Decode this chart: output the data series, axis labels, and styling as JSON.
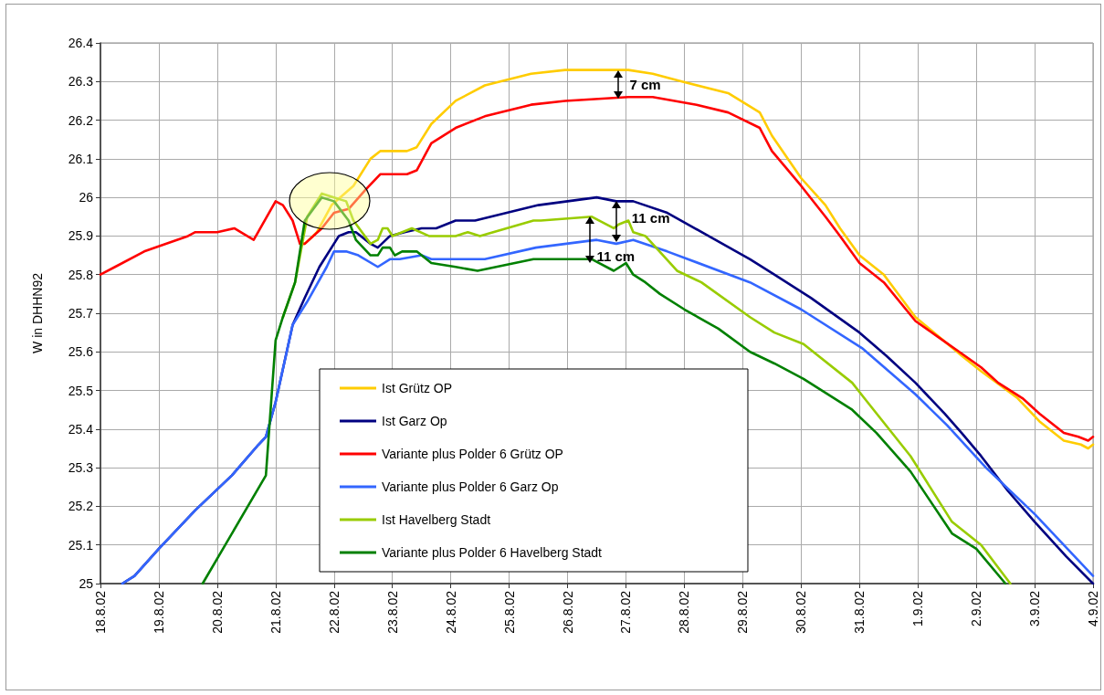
{
  "chart_data": {
    "type": "line",
    "ylabel": "W in DHHN92",
    "xlim": [
      "--08-18",
      "--09-04"
    ],
    "xticks": [
      {
        "value": "--08-18",
        "label": "18.8.02"
      },
      {
        "value": "--08-19",
        "label": "19.8.02"
      },
      {
        "value": "--08-20",
        "label": "20.8.02"
      },
      {
        "value": "--08-21",
        "label": "21.8.02"
      },
      {
        "value": "--08-22",
        "label": "22.8.02"
      },
      {
        "value": "--08-23",
        "label": "23.8.02"
      },
      {
        "value": "--08-24",
        "label": "24.8.02"
      },
      {
        "value": "--08-25",
        "label": "25.8.02"
      },
      {
        "value": "--08-26",
        "label": "26.8.02"
      },
      {
        "value": "--08-27",
        "label": "27.8.02"
      },
      {
        "value": "--08-28",
        "label": "28.8.02"
      },
      {
        "value": "--08-29",
        "label": "29.8.02"
      },
      {
        "value": "--08-30",
        "label": "30.8.02"
      },
      {
        "value": "--08-31",
        "label": "31.8.02"
      },
      {
        "value": "--09-01",
        "label": "1.9.02"
      },
      {
        "value": "--09-02",
        "label": "2.9.02"
      },
      {
        "value": "--09-03",
        "label": "3.9.02"
      },
      {
        "value": "--09-04",
        "label": "4.9.02"
      }
    ],
    "ylim": [
      25,
      26.4
    ],
    "yticks": [
      25,
      25.1,
      25.2,
      25.3,
      25.4,
      25.5,
      25.6,
      25.7,
      25.8,
      25.9,
      26,
      26.1,
      26.2,
      26.3,
      26.4
    ],
    "grid": true,
    "legend": "bottom",
    "marker": "none",
    "line_style": "solid",
    "series": [
      {
        "name": "Ist Grütz OP",
        "color": "#ffcc00",
        "x": [
          "--08-21T10:00",
          "--08-21T12:00",
          "--08-21T17:00",
          "--08-21T23:00",
          "--08-22T08:00",
          "--08-22T15:00",
          "--08-22T19:00",
          "--08-23T01:00",
          "--08-23T06:00",
          "--08-23T10:00",
          "--08-23T16:00",
          "--08-24T02:00",
          "--08-24T14:00",
          "--08-25T09:00",
          "--08-25T23:00",
          "--08-26T15:00",
          "--08-27T01:00",
          "--08-27T11:00",
          "--08-27T23:00",
          "--08-28T18:00",
          "--08-29T07:00",
          "--08-29T12:00",
          "--08-30T00:00",
          "--08-30T10:00",
          "--08-30T16:00",
          "--08-31T00:00",
          "--08-31T10:00",
          "--08-31T23:00",
          "--09-01T18:00",
          "--09-02T02:00",
          "--09-02T17:00",
          "--09-03T02:00",
          "--09-03T12:00",
          "--09-03T19:00",
          "--09-03T22:00",
          "--09-04T00:00"
        ],
        "values": [
          25.88,
          25.88,
          25.91,
          25.98,
          26.03,
          26.1,
          26.12,
          26.12,
          26.12,
          26.13,
          26.19,
          26.25,
          26.29,
          26.32,
          26.33,
          26.33,
          26.33,
          26.32,
          26.3,
          26.27,
          26.22,
          26.16,
          26.05,
          25.98,
          25.92,
          25.85,
          25.8,
          25.69,
          25.59,
          25.55,
          25.48,
          25.42,
          25.37,
          25.36,
          25.35,
          25.36
        ]
      },
      {
        "name": "Ist Garz Op",
        "color": "#000080",
        "x": [
          "--08-18T09:00",
          "--08-18T14:00",
          "--08-19T00:00",
          "--08-19T15:00",
          "--08-20T06:00",
          "--08-20T17:00",
          "--08-20T20:00",
          "--08-21T00:00",
          "--08-21T07:00",
          "--08-21T12:00",
          "--08-21T18:00",
          "--08-22T02:00",
          "--08-22T06:00",
          "--08-22T09:00",
          "--08-22T15:00",
          "--08-22T18:00",
          "--08-22T23:00",
          "--08-23T05:00",
          "--08-23T12:00",
          "--08-23T18:00",
          "--08-24T02:00",
          "--08-24T10:00",
          "--08-25T12:00",
          "--08-26T12:00",
          "--08-26T20:00",
          "--08-27T03:00",
          "--08-27T17:00",
          "--08-29T03:00",
          "--08-29T13:00",
          "--08-30T04:00",
          "--08-31T00:00",
          "--08-31T11:00",
          "--08-31T23:00",
          "--09-01T11:00",
          "--09-01T18:00",
          "--09-02T02:00",
          "--09-02T13:00",
          "--09-03T00:00",
          "--09-03T13:00",
          "--09-04T00:00"
        ],
        "values": [
          25.0,
          25.02,
          25.09,
          25.19,
          25.28,
          25.36,
          25.38,
          25.47,
          25.67,
          25.74,
          25.82,
          25.9,
          25.91,
          25.91,
          25.88,
          25.87,
          25.9,
          25.91,
          25.92,
          25.92,
          25.94,
          25.94,
          25.98,
          26.0,
          25.99,
          25.99,
          25.96,
          25.84,
          25.8,
          25.74,
          25.65,
          25.59,
          25.52,
          25.44,
          25.39,
          25.33,
          25.24,
          25.16,
          25.07,
          25.0
        ]
      },
      {
        "name": "Variante plus Polder 6 Grütz OP",
        "color": "#ff0000",
        "x": [
          "--08-18T00:00",
          "--08-18T06:00",
          "--08-18T18:00",
          "--08-19T12:00",
          "--08-19T15:00",
          "--08-20T00:00",
          "--08-20T07:00",
          "--08-20T15:00",
          "--08-21T00:00",
          "--08-21T03:00",
          "--08-21T07:00",
          "--08-21T10:00",
          "--08-21T12:00",
          "--08-21T19:00",
          "--08-22T00:00",
          "--08-22T06:00",
          "--08-22T13:00",
          "--08-22T19:00",
          "--08-23T00:00",
          "--08-23T06:00",
          "--08-23T10:00",
          "--08-23T16:00",
          "--08-24T02:00",
          "--08-24T14:00",
          "--08-25T09:00",
          "--08-25T23:00",
          "--08-27T01:00",
          "--08-27T11:00",
          "--08-28T05:00",
          "--08-28T18:00",
          "--08-29T07:00",
          "--08-29T12:00",
          "--08-30T00:00",
          "--08-30T10:00",
          "--08-30T16:00",
          "--08-31T00:00",
          "--08-31T10:00",
          "--08-31T23:00",
          "--09-01T08:00",
          "--09-01T17:00",
          "--09-02T02:00",
          "--09-02T09:00",
          "--09-02T19:00",
          "--09-03T02:00",
          "--09-03T12:00",
          "--09-03T18:00",
          "--09-03T22:00",
          "--09-04T00:00"
        ],
        "values": [
          25.8,
          25.82,
          25.86,
          25.9,
          25.91,
          25.91,
          25.92,
          25.89,
          25.99,
          25.98,
          25.94,
          25.88,
          25.88,
          25.92,
          25.96,
          25.97,
          26.02,
          26.06,
          26.06,
          26.06,
          26.07,
          26.14,
          26.18,
          26.21,
          26.24,
          26.25,
          26.26,
          26.26,
          26.24,
          26.22,
          26.18,
          26.12,
          26.03,
          25.95,
          25.9,
          25.83,
          25.78,
          25.68,
          25.64,
          25.6,
          25.56,
          25.52,
          25.48,
          25.44,
          25.39,
          25.38,
          25.37,
          25.38
        ]
      },
      {
        "name": "Variante plus Polder 6 Garz Op",
        "color": "#3366ff",
        "x": [
          "--08-18T09:00",
          "--08-18T14:00",
          "--08-19T00:00",
          "--08-19T15:00",
          "--08-20T06:00",
          "--08-20T17:00",
          "--08-20T20:00",
          "--08-21T00:00",
          "--08-21T07:00",
          "--08-21T13:00",
          "--08-21T21:00",
          "--08-22T00:00",
          "--08-22T05:00",
          "--08-22T10:00",
          "--08-22T18:00",
          "--08-22T23:00",
          "--08-23T03:00",
          "--08-23T12:00",
          "--08-23T16:00",
          "--08-24T02:00",
          "--08-24T14:00",
          "--08-25T11:00",
          "--08-26T12:00",
          "--08-26T20:00",
          "--08-27T03:00",
          "--08-27T17:00",
          "--08-29T03:00",
          "--08-30T00:00",
          "--08-31T01:00",
          "--08-31T23:00",
          "--09-01T12:00",
          "--09-02T04:00",
          "--09-03T00:00",
          "--09-04T00:00"
        ],
        "values": [
          25.0,
          25.02,
          25.09,
          25.19,
          25.28,
          25.36,
          25.38,
          25.47,
          25.67,
          25.73,
          25.82,
          25.86,
          25.86,
          25.85,
          25.82,
          25.84,
          25.84,
          25.85,
          25.84,
          25.84,
          25.84,
          25.87,
          25.89,
          25.88,
          25.89,
          25.86,
          25.78,
          25.71,
          25.61,
          25.49,
          25.41,
          25.3,
          25.18,
          25.02
        ]
      },
      {
        "name": "Ist Havelberg Stadt",
        "color": "#99cc00",
        "x": [
          "--08-21T03:00",
          "--08-21T08:00",
          "--08-21T13:00",
          "--08-21T19:00",
          "--08-22T00:00",
          "--08-22T05:00",
          "--08-22T08:00",
          "--08-22T15:00",
          "--08-22T18:00",
          "--08-22T20:00",
          "--08-22T22:00",
          "--08-23T00:00",
          "--08-23T04:00",
          "--08-23T08:00",
          "--08-23T15:00",
          "--08-24T02:00",
          "--08-24T07:00",
          "--08-24T12:00",
          "--08-25T10:00",
          "--08-25T13:00",
          "--08-26T10:00",
          "--08-26T19:00",
          "--08-26T21:00",
          "--08-27T01:00",
          "--08-27T03:00",
          "--08-27T08:00",
          "--08-27T21:00",
          "--08-28T07:00",
          "--08-29T03:00",
          "--08-29T13:00",
          "--08-30T01:00",
          "--08-30T21:00",
          "--08-31T02:00",
          "--08-31T21:00",
          "--09-01T14:00",
          "--09-02T02:00",
          "--09-02T14:00"
        ],
        "values": [
          25.69,
          25.78,
          25.95,
          26.01,
          26.0,
          25.99,
          25.94,
          25.88,
          25.89,
          25.92,
          25.92,
          25.9,
          25.91,
          25.92,
          25.9,
          25.9,
          25.91,
          25.9,
          25.94,
          25.94,
          25.95,
          25.92,
          25.93,
          25.94,
          25.91,
          25.9,
          25.81,
          25.78,
          25.69,
          25.65,
          25.62,
          25.52,
          25.48,
          25.33,
          25.16,
          25.1,
          25.0
        ]
      },
      {
        "name": "Variante plus Polder 6 Havelberg Stadt",
        "color": "#008000",
        "x": [
          "--08-19T18:00",
          "--08-20T20:00",
          "--08-21T00:00",
          "--08-21T03:00",
          "--08-21T08:00",
          "--08-21T12:00",
          "--08-21T19:00",
          "--08-22T00:00",
          "--08-22T06:00",
          "--08-22T09:00",
          "--08-22T15:00",
          "--08-22T18:00",
          "--08-22T20:00",
          "--08-22T23:00",
          "--08-23T01:00",
          "--08-23T04:00",
          "--08-23T10:00",
          "--08-23T16:00",
          "--08-24T02:00",
          "--08-24T11:00",
          "--08-25T10:00",
          "--08-26T10:00",
          "--08-26T19:00",
          "--08-27T00:00",
          "--08-27T03:00",
          "--08-27T08:00",
          "--08-27T14:00",
          "--08-28T00:00",
          "--08-28T14:00",
          "--08-29T03:00",
          "--08-29T13:00",
          "--08-30T01:00",
          "--08-30T21:00",
          "--08-31T07:00",
          "--08-31T21:00",
          "--09-01T14:00",
          "--09-02T00:00",
          "--09-02T12:00"
        ],
        "values": [
          25.0,
          25.28,
          25.63,
          25.69,
          25.78,
          25.94,
          26.0,
          25.99,
          25.94,
          25.89,
          25.85,
          25.85,
          25.87,
          25.87,
          25.85,
          25.86,
          25.86,
          25.83,
          25.82,
          25.81,
          25.84,
          25.84,
          25.81,
          25.83,
          25.8,
          25.78,
          25.75,
          25.71,
          25.66,
          25.6,
          25.57,
          25.53,
          25.45,
          25.39,
          25.29,
          25.13,
          25.09,
          25.0
        ]
      }
    ],
    "annotations": [
      {
        "text": "7 cm",
        "x": "--08-26T21:00",
        "y": 26.33
      },
      {
        "text": "11 cm",
        "x": "--08-26T20:00",
        "y": 25.99
      },
      {
        "text": "11 cm",
        "x": "--08-26T09:00",
        "y": 25.95
      }
    ]
  }
}
